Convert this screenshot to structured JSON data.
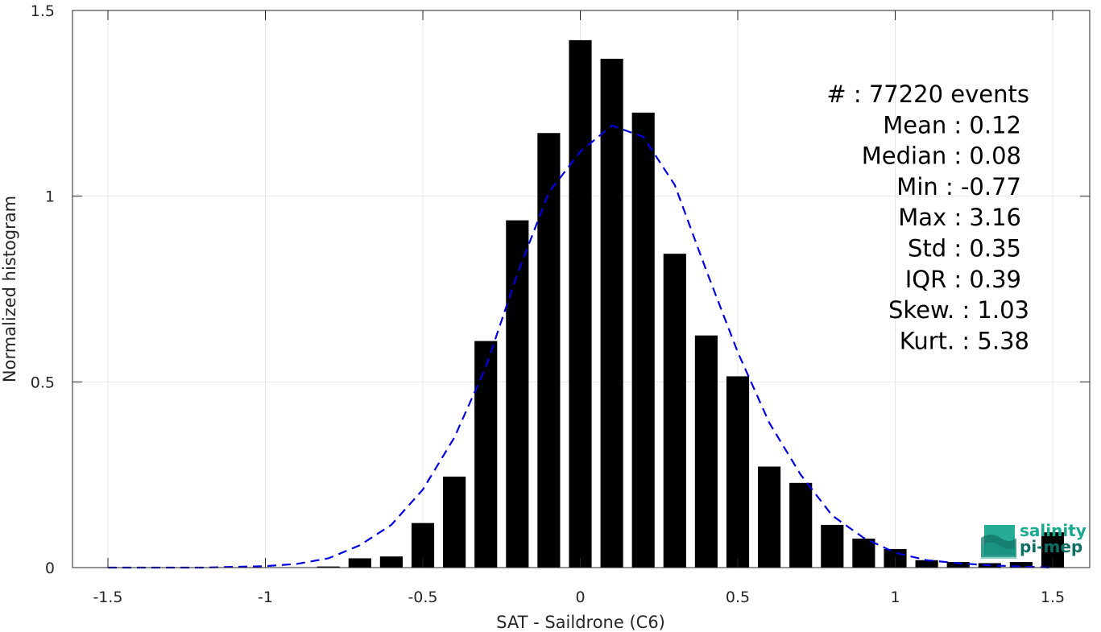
{
  "chart_data": {
    "type": "bar",
    "xlabel": "SAT - Saildrone (C6)",
    "ylabel": "Normalized histogram",
    "xlim": [
      -1.5,
      1.5
    ],
    "ylim": [
      0,
      1.5
    ],
    "x_ticks": [
      "-1.5",
      "-1",
      "-0.5",
      "0",
      "0.5",
      "1",
      "1.5"
    ],
    "y_ticks": [
      "0",
      "0.5",
      "1",
      "1.5"
    ],
    "grid": true,
    "bins": [
      -0.8,
      -0.7,
      -0.6,
      -0.5,
      -0.4,
      -0.3,
      -0.2,
      -0.1,
      0.0,
      0.1,
      0.2,
      0.3,
      0.4,
      0.5,
      0.6,
      0.7,
      0.8,
      0.9,
      1.0,
      1.1,
      1.2,
      1.3,
      1.4,
      1.5
    ],
    "values": [
      0.003,
      0.025,
      0.03,
      0.12,
      0.245,
      0.61,
      0.935,
      1.17,
      1.42,
      1.37,
      1.225,
      0.845,
      0.625,
      0.515,
      0.272,
      0.228,
      0.115,
      0.078,
      0.05,
      0.02,
      0.015,
      0.012,
      0.015,
      0.095
    ],
    "fit_curve": {
      "style": "dashed",
      "color": "#0000e0",
      "x": [
        -1.5,
        -1.4,
        -1.3,
        -1.2,
        -1.1,
        -1.0,
        -0.9,
        -0.8,
        -0.7,
        -0.6,
        -0.5,
        -0.4,
        -0.3,
        -0.2,
        -0.1,
        0.0,
        0.1,
        0.2,
        0.3,
        0.4,
        0.5,
        0.6,
        0.7,
        0.8,
        0.9,
        1.0,
        1.1,
        1.2,
        1.3,
        1.4,
        1.5
      ],
      "y": [
        0.0,
        0.0,
        0.0,
        0.0,
        0.002,
        0.004,
        0.01,
        0.025,
        0.06,
        0.115,
        0.21,
        0.35,
        0.54,
        0.79,
        1.01,
        1.12,
        1.19,
        1.16,
        1.03,
        0.8,
        0.58,
        0.39,
        0.25,
        0.14,
        0.08,
        0.04,
        0.02,
        0.012,
        0.006,
        0.003,
        0.0
      ]
    },
    "bar_color": "#000000",
    "stats": [
      {
        "label": "#  : 77220 events"
      },
      {
        "label": "Mean : 0.12"
      },
      {
        "label": "Median : 0.08"
      },
      {
        "label": "Min : -0.77"
      },
      {
        "label": "Max : 3.16"
      },
      {
        "label": "Std : 0.35"
      },
      {
        "label": "IQR : 0.39"
      },
      {
        "label": "Skew. : 1.03"
      },
      {
        "label": "Kurt. : 5.38"
      }
    ]
  },
  "logo": {
    "line1": "salinity",
    "line2": "pi-mep",
    "color_primary": "#1aa88f",
    "color_secondary": "#0f6e63"
  }
}
